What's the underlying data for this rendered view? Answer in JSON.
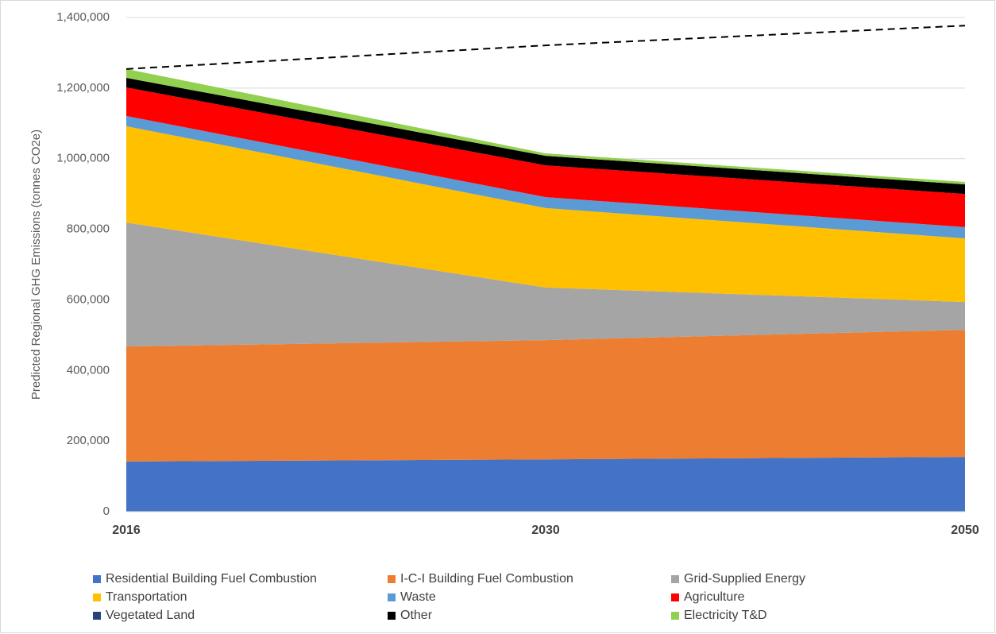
{
  "chart_data": {
    "type": "stacked_area",
    "y_label": "Predicted Regional GHG Emissions (tonnes CO2e)",
    "categories": [
      "2016",
      "2030",
      "2050"
    ],
    "series": [
      {
        "name": "Residential Building Fuel Combustion",
        "color": "#4472c4",
        "values": [
          142000,
          148000,
          155000
        ]
      },
      {
        "name": "I-C-I Building Fuel Combustion",
        "color": "#ed7d31",
        "values": [
          326000,
          338000,
          360000
        ]
      },
      {
        "name": "Grid-Supplied Energy",
        "color": "#a5a5a5",
        "values": [
          351000,
          149000,
          79000
        ]
      },
      {
        "name": "Transportation",
        "color": "#ffc000",
        "values": [
          273000,
          225000,
          180000
        ]
      },
      {
        "name": "Waste",
        "color": "#5b9bd5",
        "values": [
          29000,
          31000,
          32000
        ]
      },
      {
        "name": "Agriculture",
        "color": "#ff0000",
        "values": [
          81000,
          90000,
          94000
        ]
      },
      {
        "name": "Vegetated Land",
        "color": "#264478",
        "values": [
          0,
          0,
          0
        ]
      },
      {
        "name": "Other",
        "color": "#000000",
        "values": [
          27000,
          27000,
          27000
        ]
      },
      {
        "name": "Electricity T&D",
        "color": "#92d050",
        "values": [
          25000,
          7000,
          7000
        ]
      }
    ],
    "trend": {
      "color": "#000000",
      "dashed": true,
      "values": [
        1254000,
        1321000,
        1377000
      ]
    },
    "ylim": [
      0,
      1400000
    ],
    "yticks": [
      0,
      {
        "value": 200000,
        "label": "200,000"
      },
      {
        "value": 400000,
        "label": "400,000"
      },
      {
        "value": 600000,
        "label": "600,000"
      },
      {
        "value": 800000,
        "label": "800,000"
      },
      {
        "value": 1000000,
        "label": "1,000,000"
      },
      {
        "value": 1200000,
        "label": "1,200,000"
      },
      {
        "value": 1400000,
        "label": "1,400,000"
      }
    ],
    "grid": true,
    "legend": "bottom"
  }
}
